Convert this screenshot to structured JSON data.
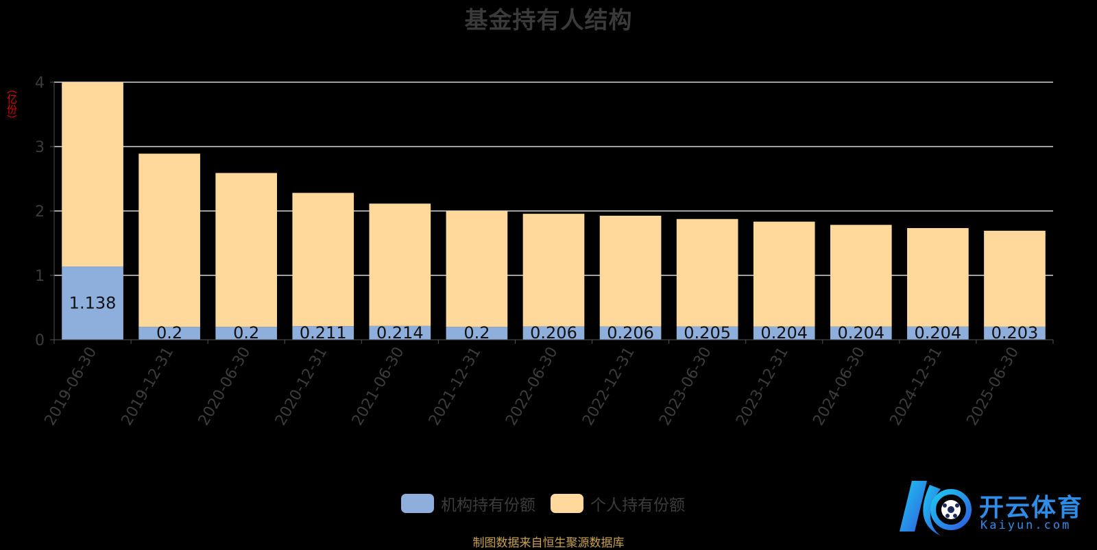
{
  "title": "基金持有人结构",
  "y_unit": "（亿份）",
  "source_note": "制图数据来自恒生聚源数据库",
  "watermark": {
    "brand": "开云体育",
    "url": "Kaiyun.com"
  },
  "colors": {
    "institutional": "#8eaedc",
    "individual": "#fed99b",
    "grid": "#ffffff",
    "axis": "#555555"
  },
  "chart_data": {
    "type": "bar",
    "stacked": true,
    "categories": [
      "2019-06-30",
      "2019-12-31",
      "2020-06-30",
      "2020-12-31",
      "2021-06-30",
      "2021-12-31",
      "2022-06-30",
      "2022-12-31",
      "2023-06-30",
      "2023-12-31",
      "2024-06-30",
      "2024-12-31",
      "2025-06-30"
    ],
    "series": [
      {
        "name": "机构持有份额",
        "values": [
          1.138,
          0.2,
          0.2,
          0.211,
          0.214,
          0.2,
          0.206,
          0.206,
          0.205,
          0.204,
          0.204,
          0.204,
          0.203
        ],
        "labels": [
          "1.138",
          "0.2",
          "0.2",
          "0.211",
          "0.214",
          "0.2",
          "0.206",
          "0.206",
          "0.205",
          "0.204",
          "0.204",
          "0.204",
          "0.203"
        ]
      },
      {
        "name": "个人持有份额",
        "values": [
          2.862,
          2.69,
          2.39,
          2.07,
          1.9,
          1.8,
          1.75,
          1.72,
          1.67,
          1.63,
          1.58,
          1.53,
          1.49
        ]
      }
    ],
    "ylim": [
      0,
      4
    ],
    "yticks": [
      "0",
      "1",
      "2",
      "3",
      "4"
    ],
    "legend_position": "bottom-center",
    "grid": true
  }
}
